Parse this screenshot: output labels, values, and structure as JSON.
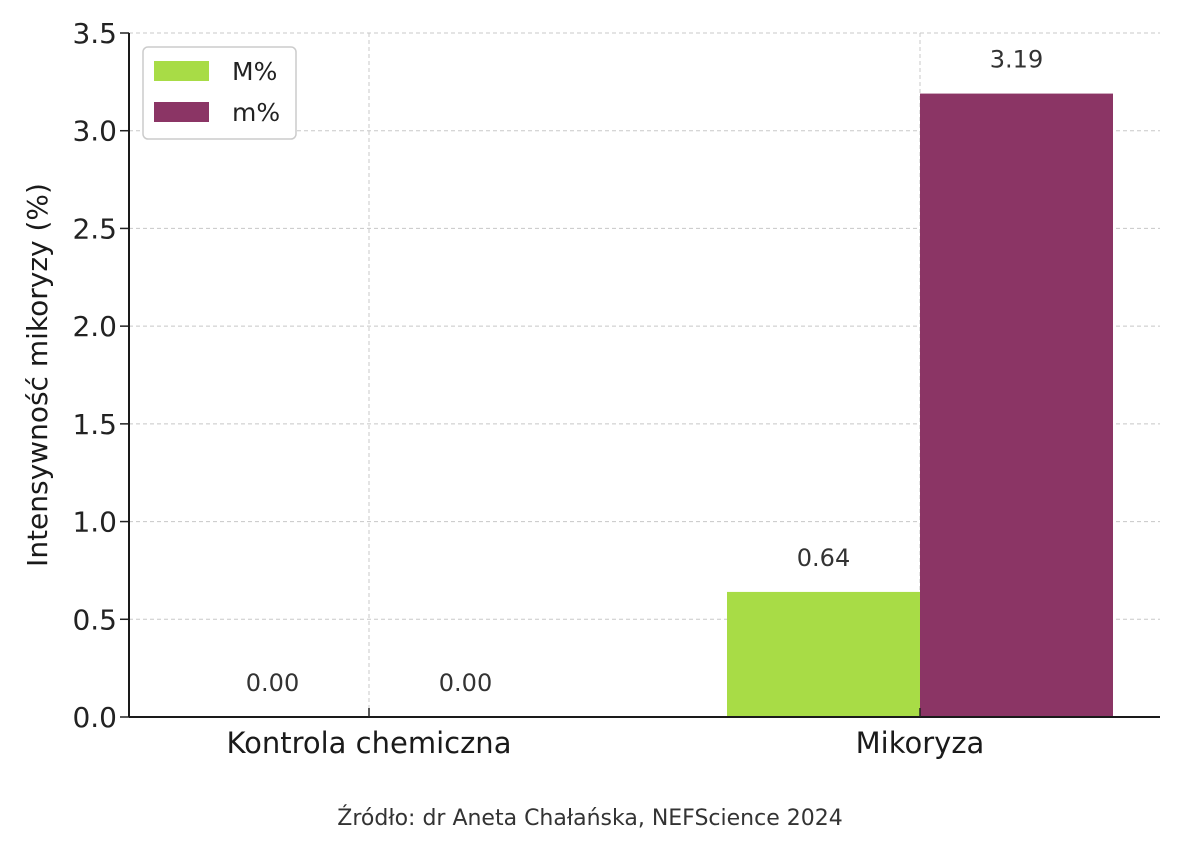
{
  "chart_data": {
    "type": "bar",
    "categories": [
      "Kontrola chemiczna",
      "Mikoryza"
    ],
    "series": [
      {
        "name": "M%",
        "values": [
          0.0,
          0.64
        ],
        "color": "#a8dc46"
      },
      {
        "name": "m%",
        "values": [
          0.0,
          3.19
        ],
        "color": "#8b3565"
      }
    ],
    "data_labels": [
      [
        "0.00",
        "0.64"
      ],
      [
        "0.00",
        "3.19"
      ]
    ],
    "title": "",
    "xlabel": "",
    "ylabel": "Intensywność mikoryzy (%)",
    "ylim": [
      0,
      3.5
    ],
    "yticks": [
      "0.0",
      "0.5",
      "1.0",
      "1.5",
      "2.0",
      "2.5",
      "3.0",
      "3.5"
    ],
    "grid": true,
    "legend_position": "top-left"
  },
  "source_text": "Źródło: dr Aneta Chałańska, NEFScience 2024"
}
